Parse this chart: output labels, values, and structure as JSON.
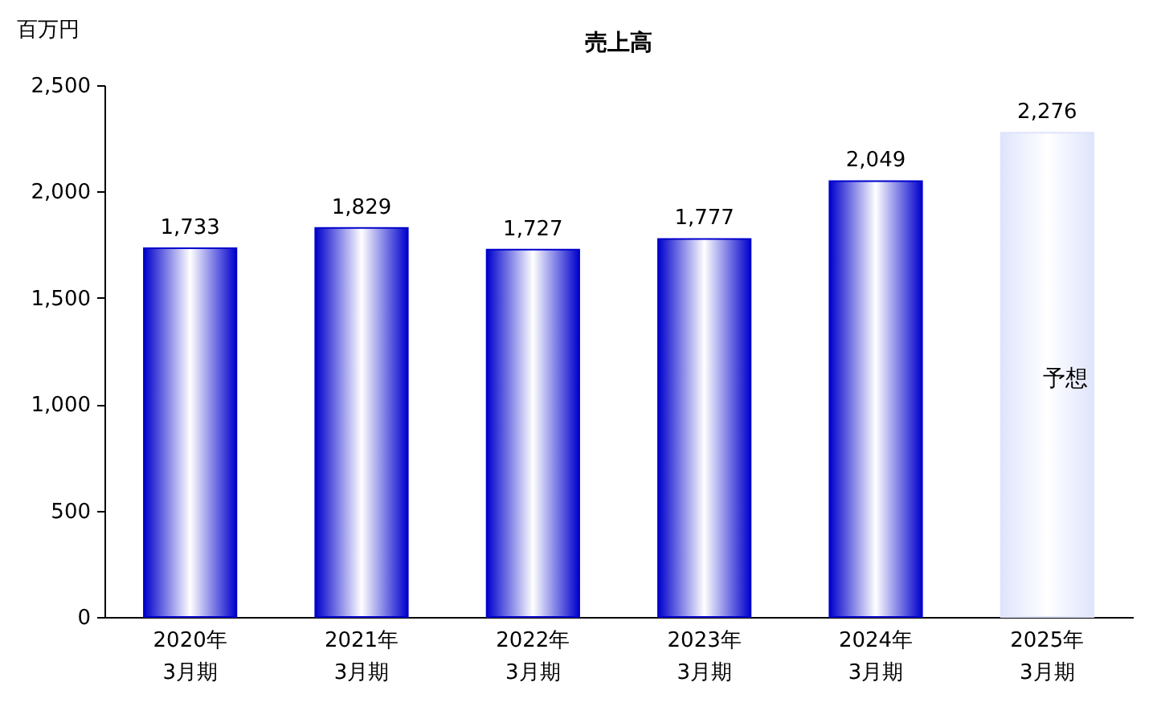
{
  "chart_data": {
    "type": "bar",
    "title": "売上高",
    "ylabel": "百万円",
    "categories": [
      "2020年\n3月期",
      "2021年\n3月期",
      "2022年\n3月期",
      "2023年\n3月期",
      "2024年\n3月期",
      "2025年\n3月期"
    ],
    "values": [
      1733,
      1829,
      1727,
      1777,
      2049,
      2276
    ],
    "value_labels": [
      "1,733",
      "1,829",
      "1,727",
      "1,777",
      "2,049",
      "2,276"
    ],
    "colors": [
      "#0000cc",
      "#0000cc",
      "#0000cc",
      "#0000cc",
      "#0000cc",
      "#dfe4fc"
    ],
    "ylim": [
      0,
      2500
    ],
    "yticks": [
      0,
      {
        "value": 500,
        "label": "500"
      },
      {
        "value": 1000,
        "label": "1,000"
      },
      {
        "value": 1500,
        "label": "1,500"
      },
      {
        "value": 2000,
        "label": "2,000"
      },
      {
        "value": 2500,
        "label": "2,500"
      }
    ],
    "grid": false,
    "annotations": [
      "予想"
    ]
  }
}
